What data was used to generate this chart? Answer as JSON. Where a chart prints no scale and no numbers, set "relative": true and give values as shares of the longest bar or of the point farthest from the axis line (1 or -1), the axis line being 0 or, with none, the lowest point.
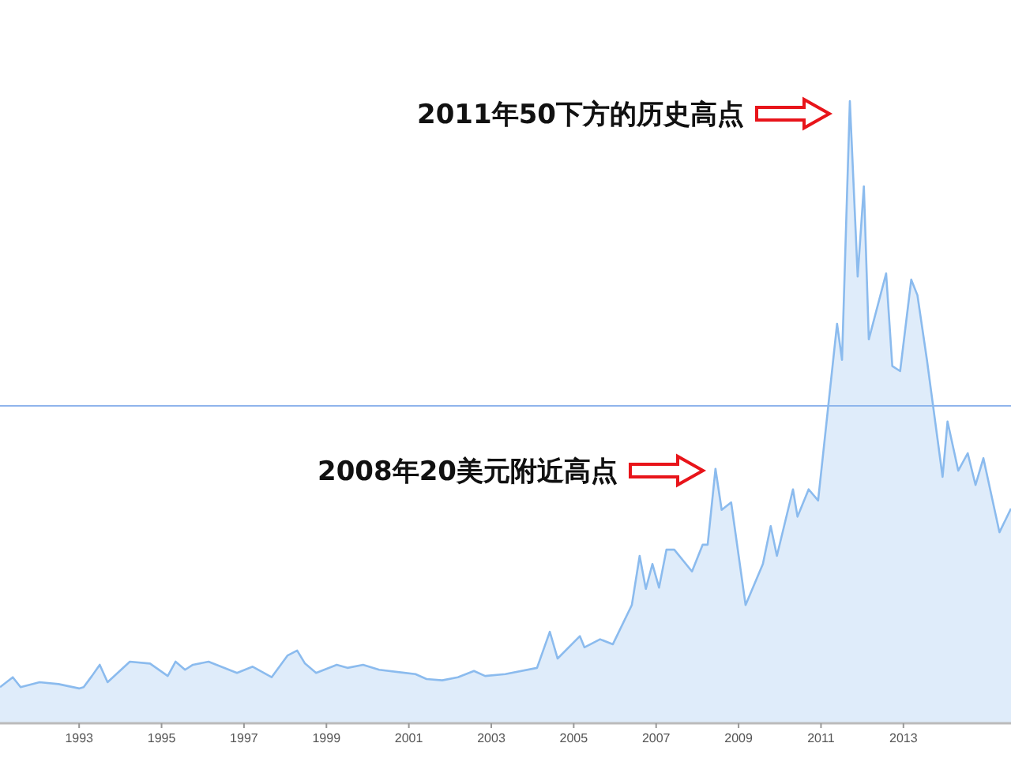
{
  "chart_data": {
    "type": "area",
    "relative": true,
    "xlim": [
      1991.08,
      2015.61
    ],
    "xticks": [
      1993,
      1995,
      1997,
      1999,
      2001,
      2003,
      2005,
      2007,
      2009,
      2011,
      2013
    ],
    "x": [
      1991.08,
      1991.39,
      1991.58,
      1992.04,
      1992.5,
      1993.0,
      1993.11,
      1993.31,
      1993.5,
      1993.69,
      1994.23,
      1994.72,
      1995.15,
      1995.34,
      1995.57,
      1995.76,
      1996.14,
      1996.83,
      1997.21,
      1997.67,
      1998.06,
      1998.29,
      1998.48,
      1998.75,
      1999.25,
      1999.51,
      1999.89,
      2000.28,
      2001.16,
      2001.43,
      2001.81,
      2002.19,
      2002.58,
      2002.85,
      2003.34,
      2004.11,
      2004.42,
      2004.61,
      2005.15,
      2005.26,
      2005.64,
      2005.95,
      2006.41,
      2006.6,
      2006.75,
      2006.91,
      2007.07,
      2007.25,
      2007.44,
      2007.87,
      2008.13,
      2008.25,
      2008.44,
      2008.59,
      2008.82,
      2009.17,
      2009.59,
      2009.78,
      2009.93,
      2010.32,
      2010.43,
      2010.7,
      2010.93,
      2011.28,
      2011.39,
      2011.51,
      2011.7,
      2011.89,
      2012.04,
      2012.16,
      2012.58,
      2012.73,
      2012.92,
      2013.19,
      2013.34,
      2013.57,
      2013.95,
      2014.07,
      2014.33,
      2014.56,
      2014.75,
      2014.94,
      2015.33,
      2015.61
    ],
    "series": [
      {
        "color": "#8bbbee",
        "values": [
          0.058,
          0.074,
          0.058,
          0.066,
          0.063,
          0.056,
          0.058,
          0.076,
          0.094,
          0.066,
          0.099,
          0.096,
          0.076,
          0.099,
          0.086,
          0.094,
          0.099,
          0.081,
          0.091,
          0.074,
          0.109,
          0.117,
          0.096,
          0.081,
          0.094,
          0.089,
          0.094,
          0.086,
          0.079,
          0.071,
          0.069,
          0.074,
          0.084,
          0.076,
          0.079,
          0.089,
          0.147,
          0.104,
          0.14,
          0.122,
          0.135,
          0.127,
          0.19,
          0.269,
          0.216,
          0.256,
          0.218,
          0.279,
          0.279,
          0.244,
          0.287,
          0.287,
          0.409,
          0.343,
          0.355,
          0.19,
          0.256,
          0.317,
          0.269,
          0.376,
          0.332,
          0.376,
          0.358,
          0.574,
          0.642,
          0.584,
          1,
          0.718,
          0.863,
          0.617,
          0.723,
          0.574,
          0.566,
          0.713,
          0.688,
          0.584,
          0.396,
          0.485,
          0.406,
          0.434,
          0.383,
          0.426,
          0.307,
          0.345
        ]
      }
    ],
    "ref_lines": [
      {
        "axis": "y",
        "value": 0.51,
        "color": "#8fb4ec"
      }
    ],
    "annotations": [
      "2011年50下方的历史高点",
      "2008年20美元附近高点"
    ]
  }
}
